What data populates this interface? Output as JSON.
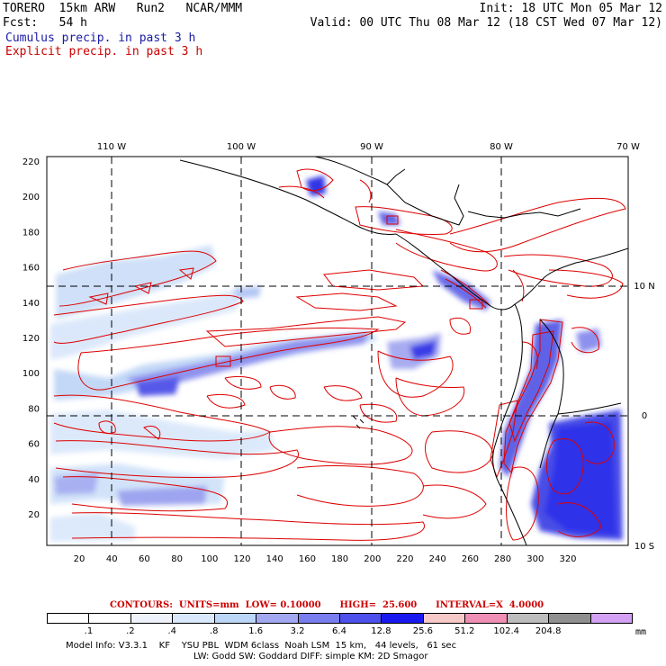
{
  "header": {
    "line1_left": "TORERO  15km ARW   Run2   NCAR/MMM",
    "line1_right": "Init: 18 UTC Mon 05 Mar 12",
    "line2_left": "Fcst:   54 h",
    "line2_right": "Valid: 00 UTC Thu 08 Mar 12 (18 CST Wed 07 Mar 12)",
    "cumulus_label": "Cumulus precip. in past 3 h",
    "explicit_label": "Explicit precip. in past 3 h"
  },
  "colors": {
    "cumulus_text": "#1a1aa6",
    "explicit_text": "#cc0000",
    "contour": "#dd0000",
    "coast": "#000000"
  },
  "map": {
    "lon_labels": [
      "110 W",
      "100 W",
      "90 W",
      "80 W",
      "70 W"
    ],
    "lat_labels": [
      "10 N",
      "0",
      "10 S"
    ],
    "x_ticks": [
      "20",
      "40",
      "60",
      "80",
      "100",
      "120",
      "140",
      "160",
      "180",
      "200",
      "220",
      "240",
      "260",
      "280",
      "300",
      "320"
    ],
    "y_ticks": [
      "20",
      "40",
      "60",
      "80",
      "100",
      "120",
      "140",
      "160",
      "180",
      "200",
      "220"
    ]
  },
  "legend": {
    "contours_text": "CONTOURS:  UNITS=mm  LOW= 0.10000      HIGH=  25.600      INTERVAL=X  4.0000",
    "units": "mm",
    "tick_labels": [
      ".1",
      ".2",
      ".4",
      ".8",
      "1.6",
      "3.2",
      "6.4",
      "12.8",
      "25.6",
      "51.2",
      "102.4",
      "204.8"
    ],
    "swatch_colors": [
      "#ffffff",
      "#ffffff",
      "#eef3fb",
      "#d9e8fa",
      "#bcd6f7",
      "#a3a8f2",
      "#7a7df0",
      "#4e50ec",
      "#1a1af0",
      "#f6c8c8",
      "#ef8fb5",
      "#bdbdbd",
      "#909090",
      "#d3a0f3"
    ]
  },
  "footer": {
    "line1": "Model Info: V3.3.1    KF    YSU PBL  WDM 6class  Noah LSM  15 km,   44 levels,   61 sec",
    "line2": "LW: Godd SW: Goddard DIFF: simple KM: 2D Smagor"
  }
}
